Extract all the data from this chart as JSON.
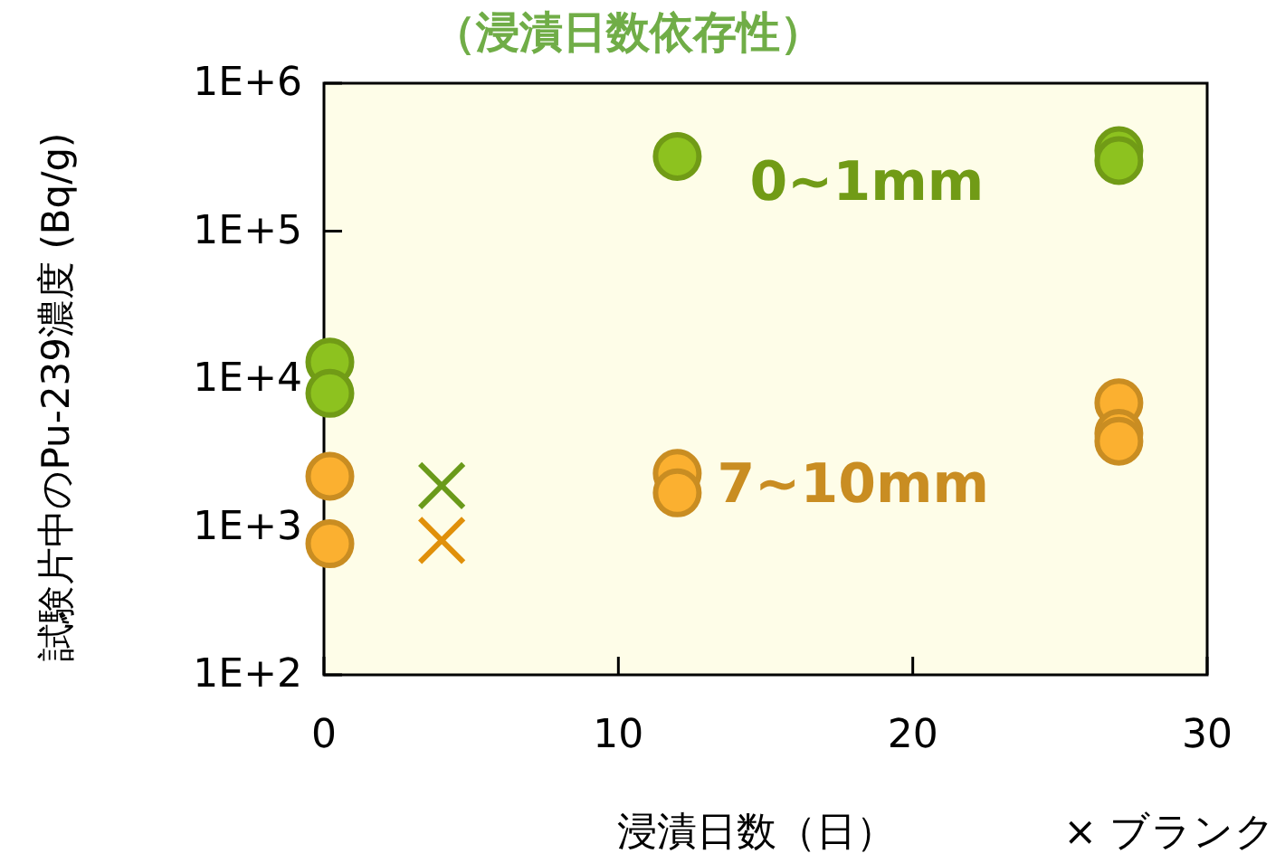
{
  "chart_data": {
    "type": "scatter",
    "title": "（浸漬日数依存性）",
    "xlabel": "浸漬日数（日）",
    "ylabel": "試験片中のPu-239濃度 (Bq/g)",
    "xlim": [
      0,
      30
    ],
    "xticks": [
      0,
      10,
      20,
      30
    ],
    "ylim": [
      100,
      1000000
    ],
    "log": "y",
    "yticks": [
      {
        "value": 100,
        "label": "1E+2"
      },
      {
        "value": 1000,
        "label": "1E+3"
      },
      {
        "value": 10000,
        "label": "1E+4"
      },
      {
        "value": 100000,
        "label": "1E+5"
      },
      {
        "value": 1000000,
        "label": "1E+6"
      }
    ],
    "series": [
      {
        "name": "0~1mm",
        "color": "#8dc21f",
        "marker": "circle",
        "x": [
          0.2,
          0.2,
          12,
          27,
          27
        ],
        "values": [
          13000,
          8000,
          320000,
          350000,
          300000
        ]
      },
      {
        "name": "7~10mm",
        "color": "#fbb030",
        "marker": "circle",
        "x": [
          0.2,
          0.2,
          12,
          12,
          27,
          27,
          27
        ],
        "values": [
          2200,
          770,
          2300,
          1700,
          6900,
          4300,
          3800
        ]
      },
      {
        "color": "#6a9a1a",
        "marker": "cross",
        "x": [
          4
        ],
        "values": [
          1900
        ]
      },
      {
        "color": "#e0900a",
        "marker": "cross",
        "x": [
          4
        ],
        "values": [
          810
        ]
      }
    ],
    "annotations": [
      "× ブランク"
    ]
  }
}
